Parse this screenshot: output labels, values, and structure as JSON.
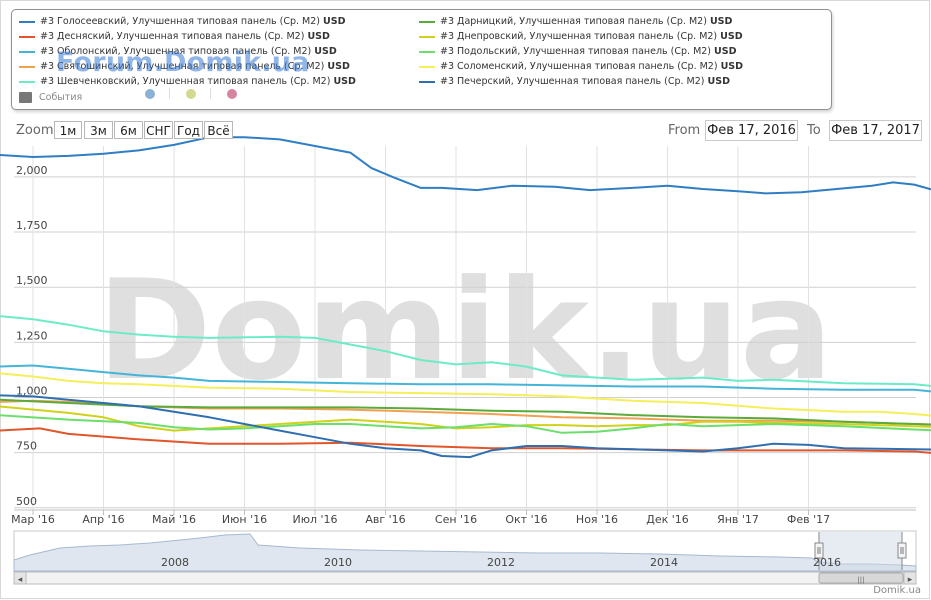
{
  "legend": {
    "items": [
      {
        "label": "#3 Голосеевский, Улучшенная типовая панель (Ср. М2)",
        "unit": "USD",
        "color": "#2f7ec4"
      },
      {
        "label": "#3 Десняский, Улучшенная типовая панель (Ср. М2)",
        "unit": "USD",
        "color": "#e0562a"
      },
      {
        "label": "#3 Оболонский, Улучшенная типовая панель (Ср. М2)",
        "unit": "USD",
        "color": "#45b4d8"
      },
      {
        "label": "#3 Святошинский, Улучшенная типовая панель (Ср. М2)",
        "unit": "USD",
        "color": "#f0a050"
      },
      {
        "label": "#3 Шевченковский, Улучшенная типовая панель (Ср. М2)",
        "unit": "USD",
        "color": "#6cecc6"
      },
      {
        "label": "#3 Дарницкий, Улучшенная типовая панель (Ср. М2)",
        "unit": "USD",
        "color": "#5aaa3c"
      },
      {
        "label": "#3 Днепровский, Улучшенная типовая панель (Ср. М2)",
        "unit": "USD",
        "color": "#cfd11a"
      },
      {
        "label": "#3 Подольский, Улучшенная типовая панель (Ср. М2)",
        "unit": "USD",
        "color": "#6bde6b"
      },
      {
        "label": "#3 Соломенский, Улучшенная типовая панель (Ср. М2)",
        "unit": "USD",
        "color": "#f4ef5a"
      },
      {
        "label": "#3 Печерский, Улучшенная типовая панель (Ср. М2)",
        "unit": "USD",
        "color": "#2f6fb0"
      }
    ],
    "events_label": "События",
    "event_dots": [
      "#8bb1d6",
      "#d4d98f",
      "#d8849e"
    ]
  },
  "watermarks": {
    "forum": "Forum.Domik.ua",
    "big": "Domik.ua",
    "footer": "Domik.ua"
  },
  "controls": {
    "zoom_label": "Zoom",
    "zoom_buttons": [
      "1м",
      "3м",
      "6м",
      "СНГ",
      "Год",
      "Всё"
    ],
    "from_label": "From",
    "from_value": "Фев 17, 2016",
    "to_label": "To",
    "to_value": "Фев 17, 2017"
  },
  "navigator": {
    "years": [
      "2008",
      "2010",
      "2012",
      "2014",
      "2016"
    ],
    "left_arrow": "◂",
    "right_arrow": "▸",
    "grip": "|||"
  },
  "chart_data": {
    "type": "line",
    "x_unit": "month",
    "x_start": "2016-02-17",
    "x_end": "2017-02-17",
    "x_tick_labels": [
      "Мар '16",
      "Апр '16",
      "Май '16",
      "Июн '16",
      "Июл '16",
      "Авг '16",
      "Сен '16",
      "Окт '16",
      "Ноя '16",
      "Дек '16",
      "Янв '17",
      "Фев '17"
    ],
    "y_ticks": [
      "500",
      "750",
      "1,000",
      "1,250",
      "1,500",
      "1,750",
      "2,000"
    ],
    "ylim": [
      490,
      2140
    ],
    "series": [
      {
        "name": "#3 Голосеевский, Улучшенная типовая панель (Ср. М2)",
        "color": "#2f7ec4",
        "points": [
          [
            0,
            2100
          ],
          [
            0.5,
            2090
          ],
          [
            1,
            2095
          ],
          [
            1.5,
            2105
          ],
          [
            2,
            2120
          ],
          [
            2.5,
            2145
          ],
          [
            3,
            2180
          ],
          [
            3.5,
            2180
          ],
          [
            4,
            2170
          ],
          [
            4.5,
            2140
          ],
          [
            5,
            2110
          ],
          [
            5.3,
            2040
          ],
          [
            5.6,
            2000
          ],
          [
            6,
            1950
          ],
          [
            6.3,
            1950
          ],
          [
            6.8,
            1940
          ],
          [
            7.3,
            1960
          ],
          [
            7.9,
            1955
          ],
          [
            8.4,
            1940
          ],
          [
            9,
            1950
          ],
          [
            9.5,
            1960
          ],
          [
            10,
            1945
          ],
          [
            10.5,
            1935
          ],
          [
            10.9,
            1925
          ],
          [
            11.4,
            1930
          ],
          [
            11.9,
            1945
          ],
          [
            12.4,
            1960
          ],
          [
            12.7,
            1975
          ],
          [
            13,
            1965
          ],
          [
            13.5,
            1920
          ],
          [
            14,
            1860
          ]
        ]
      },
      {
        "name": "#3 Десняский, Улучшенная типовая панель (Ср. М2)",
        "color": "#e0562a",
        "points": [
          [
            0,
            850
          ],
          [
            0.6,
            860
          ],
          [
            1,
            835
          ],
          [
            2,
            810
          ],
          [
            3,
            790
          ],
          [
            4,
            790
          ],
          [
            5,
            795
          ],
          [
            6,
            780
          ],
          [
            7,
            770
          ],
          [
            8,
            770
          ],
          [
            9,
            765
          ],
          [
            10,
            760
          ],
          [
            11,
            760
          ],
          [
            12,
            760
          ],
          [
            13,
            755
          ],
          [
            14,
            730
          ]
        ]
      },
      {
        "name": "#3 Оболонский, Улучшенная типовая панель (Ср. М2)",
        "color": "#45b4d8",
        "points": [
          [
            0,
            1140
          ],
          [
            0.5,
            1145
          ],
          [
            1,
            1130
          ],
          [
            1.5,
            1115
          ],
          [
            2,
            1100
          ],
          [
            2.5,
            1090
          ],
          [
            3,
            1075
          ],
          [
            4,
            1070
          ],
          [
            5,
            1065
          ],
          [
            6,
            1060
          ],
          [
            7,
            1060
          ],
          [
            8,
            1055
          ],
          [
            9,
            1050
          ],
          [
            10,
            1050
          ],
          [
            11,
            1040
          ],
          [
            12,
            1035
          ],
          [
            13,
            1035
          ],
          [
            14,
            1005
          ]
        ]
      },
      {
        "name": "#3 Святошинский, Улучшенная типовая панель (Ср. М2)",
        "color": "#f0a050",
        "points": [
          [
            0,
            980
          ],
          [
            0.5,
            985
          ],
          [
            1,
            980
          ],
          [
            2,
            960
          ],
          [
            3,
            950
          ],
          [
            4,
            950
          ],
          [
            5,
            945
          ],
          [
            6,
            935
          ],
          [
            7,
            925
          ],
          [
            8,
            910
          ],
          [
            9,
            905
          ],
          [
            10,
            895
          ],
          [
            11,
            895
          ],
          [
            12,
            890
          ],
          [
            13,
            880
          ],
          [
            14,
            870
          ]
        ]
      },
      {
        "name": "#3 Шевченковский, Улучшенная типовая панель (Ср. М2)",
        "color": "#6cecc6",
        "points": [
          [
            0,
            1370
          ],
          [
            0.5,
            1355
          ],
          [
            1,
            1330
          ],
          [
            1.5,
            1300
          ],
          [
            2,
            1285
          ],
          [
            2.5,
            1275
          ],
          [
            3,
            1270
          ],
          [
            4,
            1275
          ],
          [
            4.5,
            1270
          ],
          [
            5,
            1240
          ],
          [
            5.5,
            1210
          ],
          [
            6,
            1170
          ],
          [
            6.5,
            1150
          ],
          [
            7,
            1160
          ],
          [
            7.5,
            1140
          ],
          [
            8,
            1100
          ],
          [
            8.5,
            1090
          ],
          [
            9,
            1080
          ],
          [
            10,
            1090
          ],
          [
            10.5,
            1075
          ],
          [
            11,
            1080
          ],
          [
            12,
            1065
          ],
          [
            13,
            1060
          ],
          [
            14,
            1030
          ]
        ]
      },
      {
        "name": "#3 Дарницкий, Улучшенная типовая панель (Ср. М2)",
        "color": "#5aaa3c",
        "points": [
          [
            0,
            990
          ],
          [
            1,
            975
          ],
          [
            2,
            960
          ],
          [
            3,
            955
          ],
          [
            4,
            955
          ],
          [
            5,
            955
          ],
          [
            6,
            950
          ],
          [
            7,
            940
          ],
          [
            8,
            935
          ],
          [
            9,
            920
          ],
          [
            10,
            910
          ],
          [
            11,
            905
          ],
          [
            12,
            890
          ],
          [
            13,
            880
          ],
          [
            14,
            870
          ]
        ]
      },
      {
        "name": "#3 Днепровский, Улучшенная типовая панель (Ср. М2)",
        "color": "#cfd11a",
        "points": [
          [
            0,
            960
          ],
          [
            1,
            930
          ],
          [
            1.5,
            910
          ],
          [
            2,
            870
          ],
          [
            2.5,
            850
          ],
          [
            3,
            860
          ],
          [
            4,
            880
          ],
          [
            5,
            900
          ],
          [
            6,
            880
          ],
          [
            6.5,
            860
          ],
          [
            7,
            865
          ],
          [
            7.5,
            875
          ],
          [
            8,
            875
          ],
          [
            8.5,
            870
          ],
          [
            9,
            875
          ],
          [
            9.5,
            875
          ],
          [
            10,
            890
          ],
          [
            10.5,
            890
          ],
          [
            11,
            885
          ],
          [
            12,
            880
          ],
          [
            13,
            870
          ],
          [
            14,
            860
          ]
        ]
      },
      {
        "name": "#3 Подольский, Улучшенная типовая панель (Ср. М2)",
        "color": "#6bde6b",
        "points": [
          [
            0,
            920
          ],
          [
            1,
            900
          ],
          [
            2,
            885
          ],
          [
            2.5,
            865
          ],
          [
            3,
            855
          ],
          [
            3.5,
            860
          ],
          [
            4,
            870
          ],
          [
            4.5,
            880
          ],
          [
            5,
            880
          ],
          [
            5.5,
            870
          ],
          [
            6,
            860
          ],
          [
            6.5,
            865
          ],
          [
            7,
            880
          ],
          [
            7.5,
            870
          ],
          [
            8,
            840
          ],
          [
            8.5,
            845
          ],
          [
            9,
            860
          ],
          [
            9.5,
            880
          ],
          [
            10,
            870
          ],
          [
            10.5,
            875
          ],
          [
            11,
            880
          ],
          [
            12,
            870
          ],
          [
            13,
            855
          ],
          [
            14,
            840
          ]
        ]
      },
      {
        "name": "#3 Соломенский, Улучшенная типовая панель (Ср. М2)",
        "color": "#f4ef5a",
        "points": [
          [
            0,
            1110
          ],
          [
            0.5,
            1095
          ],
          [
            1,
            1075
          ],
          [
            1.5,
            1065
          ],
          [
            2,
            1060
          ],
          [
            3,
            1045
          ],
          [
            4,
            1040
          ],
          [
            5,
            1025
          ],
          [
            6,
            1020
          ],
          [
            7,
            1015
          ],
          [
            7.5,
            1010
          ],
          [
            8,
            1005
          ],
          [
            9,
            985
          ],
          [
            10,
            975
          ],
          [
            11,
            950
          ],
          [
            12,
            935
          ],
          [
            12.5,
            935
          ],
          [
            13,
            925
          ],
          [
            13.5,
            910
          ],
          [
            14,
            885
          ]
        ]
      },
      {
        "name": "#3 Печерский, Улучшенная типовая панель (Ср. М2)",
        "color": "#2f6fb0",
        "points": [
          [
            0,
            1010
          ],
          [
            0.5,
            1005
          ],
          [
            1,
            990
          ],
          [
            1.5,
            975
          ],
          [
            2,
            960
          ],
          [
            2.5,
            935
          ],
          [
            3,
            910
          ],
          [
            3.5,
            880
          ],
          [
            4,
            850
          ],
          [
            4.5,
            820
          ],
          [
            5,
            790
          ],
          [
            5.5,
            770
          ],
          [
            6,
            760
          ],
          [
            6.3,
            735
          ],
          [
            6.7,
            730
          ],
          [
            7,
            760
          ],
          [
            7.5,
            780
          ],
          [
            8,
            780
          ],
          [
            8.5,
            770
          ],
          [
            9,
            765
          ],
          [
            9.5,
            760
          ],
          [
            10,
            755
          ],
          [
            10.5,
            770
          ],
          [
            11,
            790
          ],
          [
            11.5,
            785
          ],
          [
            12,
            770
          ],
          [
            13,
            765
          ],
          [
            14,
            760
          ]
        ]
      }
    ]
  }
}
